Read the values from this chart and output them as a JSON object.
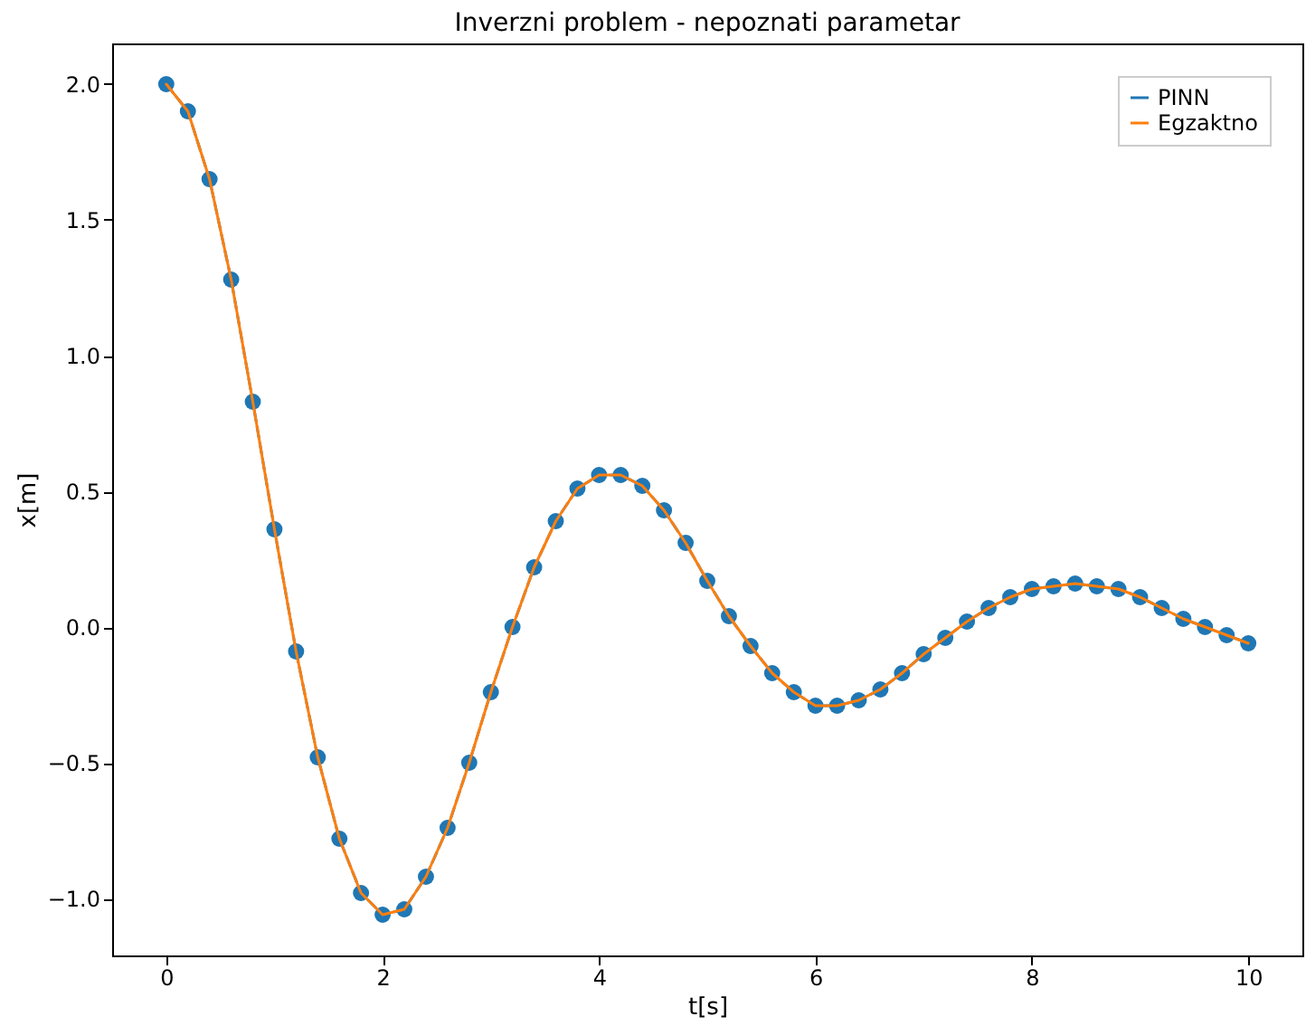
{
  "chart_data": {
    "type": "line",
    "title": "Inverzni problem - nepoznati parametar",
    "xlabel": "t[s]",
    "ylabel": "x[m]",
    "x": [
      0,
      0.2,
      0.4,
      0.6,
      0.8,
      1.0,
      1.2,
      1.4,
      1.6,
      1.8,
      2.0,
      2.2,
      2.4,
      2.6,
      2.8,
      3.0,
      3.2,
      3.4,
      3.6,
      3.8,
      4.0,
      4.2,
      4.4,
      4.6,
      4.8,
      5.0,
      5.2,
      5.4,
      5.6,
      5.8,
      6.0,
      6.2,
      6.4,
      6.6,
      6.8,
      7.0,
      7.2,
      7.4,
      7.6,
      7.8,
      8.0,
      8.2,
      8.4,
      8.6,
      8.8,
      9.0,
      9.2,
      9.4,
      9.6,
      9.8,
      10.0
    ],
    "series": [
      {
        "name": "PINN",
        "color": "#1f77b4",
        "marker": "circle",
        "line_style": "dashed",
        "values": [
          2.0,
          1.9,
          1.65,
          1.28,
          0.83,
          0.36,
          -0.09,
          -0.48,
          -0.78,
          -0.98,
          -1.06,
          -1.04,
          -0.92,
          -0.74,
          -0.5,
          -0.24,
          0.0,
          0.22,
          0.39,
          0.51,
          0.56,
          0.56,
          0.52,
          0.43,
          0.31,
          0.17,
          0.04,
          -0.07,
          -0.17,
          -0.24,
          -0.29,
          -0.29,
          -0.27,
          -0.23,
          -0.17,
          -0.1,
          -0.04,
          0.02,
          0.07,
          0.11,
          0.14,
          0.15,
          0.16,
          0.15,
          0.14,
          0.11,
          0.07,
          0.03,
          0.0,
          -0.03,
          -0.06
        ]
      },
      {
        "name": "Egzaktno",
        "color": "#ff7f0e",
        "marker": "none",
        "line_style": "solid",
        "values": [
          2.0,
          1.9,
          1.65,
          1.28,
          0.83,
          0.36,
          -0.09,
          -0.48,
          -0.78,
          -0.98,
          -1.06,
          -1.04,
          -0.92,
          -0.74,
          -0.5,
          -0.24,
          0.0,
          0.22,
          0.39,
          0.51,
          0.56,
          0.56,
          0.52,
          0.43,
          0.31,
          0.17,
          0.04,
          -0.07,
          -0.17,
          -0.24,
          -0.29,
          -0.29,
          -0.27,
          -0.23,
          -0.17,
          -0.1,
          -0.04,
          0.02,
          0.07,
          0.11,
          0.14,
          0.15,
          0.16,
          0.15,
          0.14,
          0.11,
          0.07,
          0.03,
          0.0,
          -0.03,
          -0.06
        ]
      }
    ],
    "xlim": [
      -0.5,
      10.5
    ],
    "xticks": [
      0,
      2,
      4,
      6,
      8,
      10
    ],
    "ylim": [
      -1.21,
      2.15
    ],
    "yticks": [
      {
        "value": -1,
        "label": "−1.0"
      },
      {
        "value": -0.5,
        "label": "−0.5"
      },
      {
        "value": 0,
        "label": "0.0"
      },
      {
        "value": 0.5,
        "label": "0.5"
      },
      {
        "value": 1,
        "label": "1.0"
      },
      {
        "value": 1.5,
        "label": "1.5"
      },
      {
        "value": 2,
        "label": "2.0"
      }
    ],
    "grid": false,
    "legend": "top right"
  }
}
